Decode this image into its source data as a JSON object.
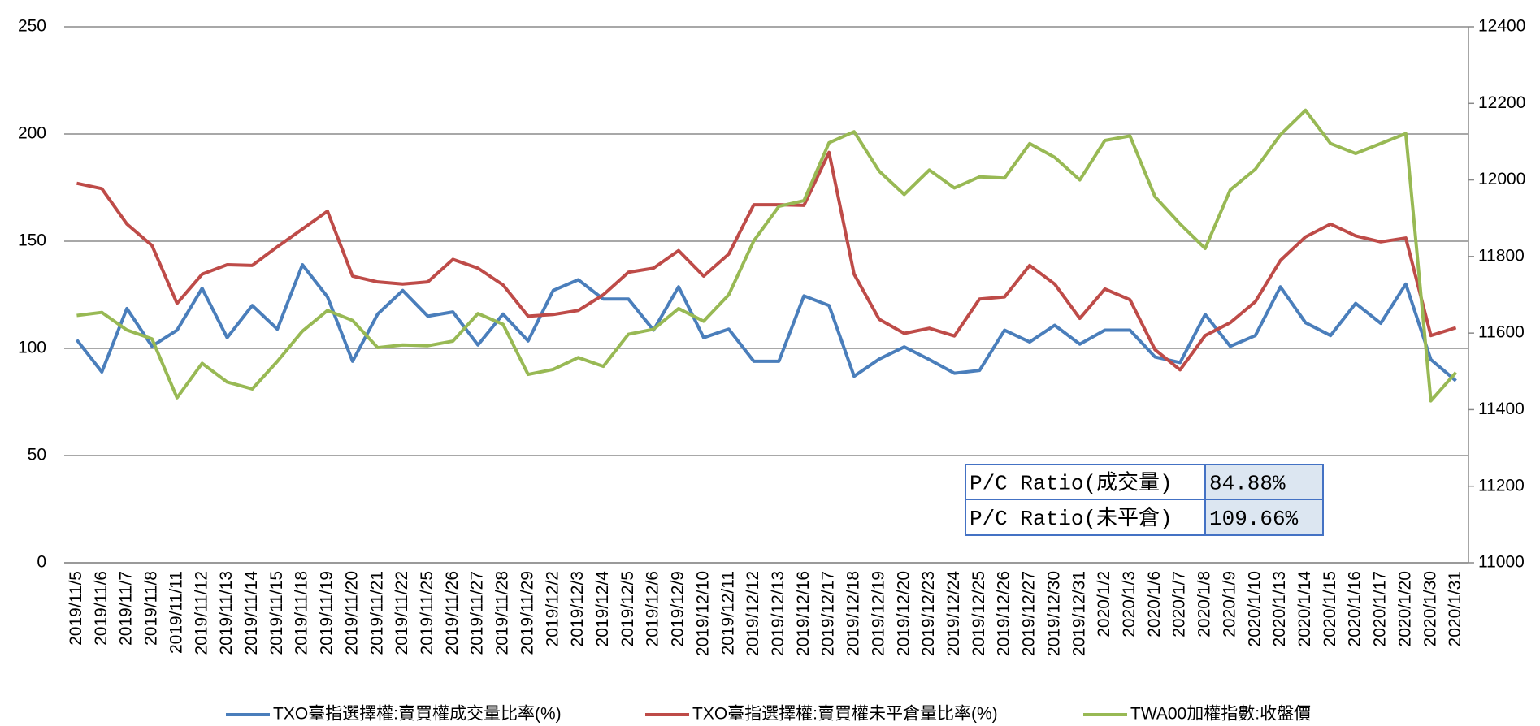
{
  "chart_data": {
    "type": "line",
    "categories": [
      "2019/11/5",
      "2019/11/6",
      "2019/11/7",
      "2019/11/8",
      "2019/11/11",
      "2019/11/12",
      "2019/11/13",
      "2019/11/14",
      "2019/11/15",
      "2019/11/18",
      "2019/11/19",
      "2019/11/20",
      "2019/11/21",
      "2019/11/22",
      "2019/11/25",
      "2019/11/26",
      "2019/11/27",
      "2019/11/28",
      "2019/11/29",
      "2019/12/2",
      "2019/12/3",
      "2019/12/4",
      "2019/12/5",
      "2019/12/6",
      "2019/12/9",
      "2019/12/10",
      "2019/12/11",
      "2019/12/12",
      "2019/12/13",
      "2019/12/16",
      "2019/12/17",
      "2019/12/18",
      "2019/12/19",
      "2019/12/20",
      "2019/12/23",
      "2019/12/24",
      "2019/12/25",
      "2019/12/26",
      "2019/12/27",
      "2019/12/30",
      "2019/12/31",
      "2020/1/2",
      "2020/1/3",
      "2020/1/6",
      "2020/1/7",
      "2020/1/8",
      "2020/1/9",
      "2020/1/10",
      "2020/1/13",
      "2020/1/14",
      "2020/1/15",
      "2020/1/16",
      "2020/1/17",
      "2020/1/20",
      "2020/1/30",
      "2020/1/31"
    ],
    "series": [
      {
        "name": "TXO臺指選擇權:賣買權成交量比率(%)",
        "color": "#4a7ebb",
        "values": [
          104,
          89,
          118.6,
          101,
          108.5,
          128,
          105,
          120,
          109,
          139,
          124,
          94,
          116,
          127,
          115,
          117,
          101.6,
          116,
          103.5,
          127,
          132,
          123,
          123,
          108.5,
          128.7,
          105,
          109,
          94,
          94,
          124.5,
          120,
          87,
          95,
          100.7,
          94.8,
          88.4,
          89.7,
          108.5,
          103,
          110.8,
          102,
          108.5,
          108.5,
          96,
          93.4,
          115.8,
          101,
          106,
          128.7,
          112,
          106,
          121,
          111.7,
          130,
          94.8,
          84.88
        ]
      },
      {
        "name": "TXO臺指選擇權:賣買權未平倉量比率(%)",
        "color": "#be4b48",
        "values": [
          177,
          174.5,
          158,
          148,
          121,
          134.6,
          139,
          138.7,
          147.4,
          155.7,
          164,
          133.7,
          131,
          130,
          131,
          141.5,
          137.4,
          129.6,
          115,
          115.8,
          117.7,
          125,
          135.5,
          137.4,
          145.6,
          133.7,
          144,
          167,
          167,
          166.7,
          191.4,
          134.6,
          113.6,
          107,
          109.4,
          105.8,
          123,
          124,
          138.7,
          130,
          114,
          127.7,
          122.7,
          99.4,
          90,
          106,
          112,
          121.8,
          141,
          152,
          158,
          152.5,
          149.7,
          151.5,
          106,
          109.66
        ]
      },
      {
        "name": "TWA00加權指數:收盤價",
        "color": "#98b954",
        "axis": "y2",
        "values": [
          11646,
          11654,
          11608,
          11585,
          11431,
          11521,
          11472,
          11454,
          11526,
          11605,
          11659,
          11633,
          11562,
          11569,
          11567,
          11579,
          11651,
          11623,
          11492,
          11505,
          11536,
          11513,
          11597,
          11610,
          11664,
          11631,
          11700,
          11841,
          11931,
          11946,
          12097,
          12126,
          12023,
          11962,
          12026,
          11979,
          12008,
          12005,
          12095,
          12059,
          12000,
          12103,
          12115,
          11956,
          11885,
          11821,
          11974,
          12028,
          12118,
          12182,
          12095,
          12069,
          12095,
          12121,
          11423,
          11497
        ]
      }
    ],
    "ylim": [
      0,
      250
    ],
    "yticks": [
      0,
      50,
      100,
      150,
      200,
      250
    ],
    "y2lim": [
      11000,
      12400
    ],
    "y2ticks": [
      11000,
      11200,
      11400,
      11600,
      11800,
      12000,
      12200,
      12400
    ],
    "grid": true,
    "legend": "bottom",
    "table": {
      "rows": [
        [
          "P/C Ratio(成交量)",
          "84.88%"
        ],
        [
          "P/C Ratio(未平倉)",
          "109.66%"
        ]
      ]
    }
  }
}
